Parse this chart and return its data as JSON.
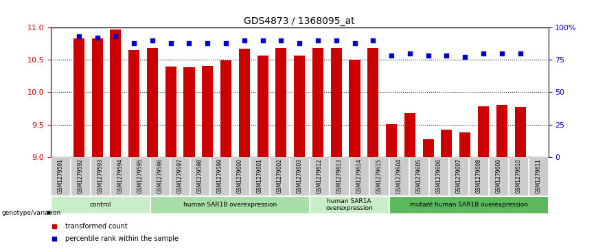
{
  "title": "GDS4873 / 1368095_at",
  "samples": [
    "GSM1279591",
    "GSM1279592",
    "GSM1279593",
    "GSM1279594",
    "GSM1279595",
    "GSM1279596",
    "GSM1279597",
    "GSM1279598",
    "GSM1279599",
    "GSM1279600",
    "GSM1279601",
    "GSM1279602",
    "GSM1279603",
    "GSM1279612",
    "GSM1279613",
    "GSM1279614",
    "GSM1279615",
    "GSM1279604",
    "GSM1279605",
    "GSM1279606",
    "GSM1279607",
    "GSM1279608",
    "GSM1279609",
    "GSM1279610",
    "GSM1279611"
  ],
  "bar_values": [
    10.83,
    10.83,
    10.97,
    10.65,
    10.68,
    10.4,
    10.38,
    10.41,
    10.49,
    10.67,
    10.57,
    10.68,
    10.57,
    10.68,
    10.68,
    10.5,
    10.68,
    9.5,
    9.68,
    9.27,
    9.42,
    9.38,
    9.78,
    9.8,
    9.77
  ],
  "percentile_values": [
    93,
    92,
    93,
    88,
    90,
    88,
    88,
    88,
    88,
    90,
    90,
    90,
    88,
    90,
    90,
    88,
    90,
    78,
    80,
    78,
    78,
    77,
    80,
    80,
    80
  ],
  "ylim_left": [
    9.0,
    11.0
  ],
  "ylim_right": [
    0,
    100
  ],
  "yticks_left": [
    9.0,
    9.5,
    10.0,
    10.5,
    11.0
  ],
  "yticks_right": [
    0,
    25,
    50,
    75,
    100
  ],
  "groups": [
    {
      "label": "control",
      "start": 0,
      "end": 5,
      "color": "#c8eec8"
    },
    {
      "label": "human SAR1B overexpression",
      "start": 5,
      "end": 13,
      "color": "#a8dea8"
    },
    {
      "label": "human SAR1A\noverexpression",
      "start": 13,
      "end": 17,
      "color": "#c8eec8"
    },
    {
      "label": "mutant human SAR1B overexpression",
      "start": 17,
      "end": 25,
      "color": "#5cb85c"
    }
  ],
  "bar_color": "#cc0000",
  "percentile_color": "#0000cc",
  "bar_width": 0.6,
  "xlabel_color": "#cc0000",
  "ylabel_right_color": "#0000cc",
  "tick_label_bg": "#cccccc",
  "legend_labels": [
    "transformed count",
    "percentile rank within the sample"
  ]
}
